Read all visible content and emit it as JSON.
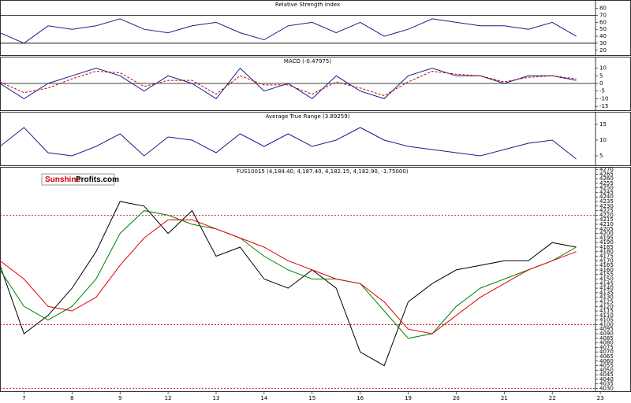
{
  "logo": {
    "part1": "Sunshine",
    "part2": "Profits.com"
  },
  "chart_data": [
    {
      "type": "line",
      "title": "Relative Strength Index",
      "x": [
        -0.5,
        0,
        0.5,
        1,
        1.5,
        2,
        2.5,
        3,
        3.5,
        4,
        4.5,
        5,
        5.5,
        6,
        6.5,
        7,
        7.5,
        8,
        8.5,
        9,
        9.5,
        10,
        10.5,
        11,
        11.5
      ],
      "xlim": [
        -0.5,
        11.9
      ],
      "ylim": [
        13,
        92
      ],
      "yticks": [
        20,
        30,
        40,
        50,
        60,
        70,
        80
      ],
      "levels": [
        70,
        30
      ],
      "level_color": "#000000",
      "series": [
        {
          "color": "#1c1c8c",
          "style": "solid",
          "values": [
            45,
            30,
            55,
            50,
            55,
            65,
            50,
            45,
            55,
            60,
            45,
            35,
            55,
            60,
            45,
            60,
            40,
            50,
            65,
            60,
            55,
            55,
            50,
            60,
            40
          ]
        }
      ]
    },
    {
      "type": "line",
      "title": "MACD (-0.47975)",
      "x": [
        -0.5,
        0,
        0.5,
        1,
        1.5,
        2,
        2.5,
        3,
        3.5,
        4,
        4.5,
        5,
        5.5,
        6,
        6.5,
        7,
        7.5,
        8,
        8.5,
        9,
        9.5,
        10,
        10.5,
        11,
        11.5
      ],
      "xlim": [
        -0.5,
        11.9
      ],
      "ylim": [
        -17.5,
        17.5
      ],
      "yticks": [
        -15,
        -10,
        -5,
        0,
        5,
        10
      ],
      "levels": [
        0
      ],
      "level_color": "#000000",
      "series": [
        {
          "color": "#1c1c8c",
          "style": "solid",
          "values": [
            0,
            -10,
            0,
            5,
            10,
            5,
            -5,
            5,
            0,
            -10,
            10,
            -5,
            0,
            -10,
            5,
            -5,
            -10,
            5,
            10,
            5,
            5,
            0,
            5,
            5,
            2
          ]
        },
        {
          "color": "#c00000",
          "style": "dashed",
          "values": [
            1,
            -6,
            -3,
            3,
            8,
            7,
            -2,
            2,
            2,
            -7,
            5,
            -1,
            -1,
            -7,
            1,
            -3,
            -8,
            1,
            8,
            6,
            5,
            1,
            4,
            5,
            3
          ]
        }
      ]
    },
    {
      "type": "line",
      "title": "Average True Range (3.89259)",
      "x": [
        -0.5,
        0,
        0.5,
        1,
        1.5,
        2,
        2.5,
        3,
        3.5,
        4,
        4.5,
        5,
        5.5,
        6,
        6.5,
        7,
        7.5,
        8,
        8.5,
        9,
        9.5,
        10,
        10.5,
        11,
        11.5
      ],
      "xlim": [
        -0.5,
        11.9
      ],
      "ylim": [
        2,
        19
      ],
      "yticks": [
        5,
        10,
        15
      ],
      "series": [
        {
          "color": "#1c1c8c",
          "style": "solid",
          "values": [
            8,
            14,
            6,
            5,
            8,
            12,
            5,
            11,
            10,
            6,
            12,
            8,
            12,
            8,
            10,
            14,
            10,
            8,
            7,
            6,
            5,
            7,
            9,
            10,
            4
          ]
        }
      ]
    },
    {
      "type": "line",
      "title": "FUS10015 (4,184.40, 4,187.40, 4,182.15, 4,182.90, -1.75000)",
      "x": [
        -0.5,
        0,
        0.5,
        1,
        1.5,
        2,
        2.5,
        3,
        3.5,
        4,
        4.5,
        5,
        5.5,
        6,
        6.5,
        7,
        7.5,
        8,
        8.5,
        9,
        9.5,
        10,
        10.5,
        11,
        11.5
      ],
      "xlim": [
        -0.5,
        11.9
      ],
      "ylim": [
        4027,
        4273
      ],
      "yticks": [
        4030,
        4035,
        4040,
        4045,
        4050,
        4055,
        4060,
        4065,
        4070,
        4075,
        4080,
        4085,
        4090,
        4095,
        4100,
        4105,
        4110,
        4115,
        4120,
        4125,
        4130,
        4135,
        4140,
        4145,
        4150,
        4155,
        4160,
        4165,
        4170,
        4175,
        4180,
        4185,
        4190,
        4195,
        4200,
        4205,
        4210,
        4215,
        4220,
        4225,
        4230,
        4235,
        4240,
        4245,
        4250,
        4255,
        4260,
        4265,
        4270
      ],
      "xticks": [
        {
          "value": 0,
          "label": "7"
        },
        {
          "value": 1,
          "label": "8"
        },
        {
          "value": 2,
          "label": "9"
        },
        {
          "value": 3,
          "label": "12"
        },
        {
          "value": 4,
          "label": "13"
        },
        {
          "value": 5,
          "label": "14"
        },
        {
          "value": 6,
          "label": "15"
        },
        {
          "value": 7,
          "label": "16"
        },
        {
          "value": 8,
          "label": "19"
        },
        {
          "value": 9,
          "label": "20"
        },
        {
          "value": 10,
          "label": "21"
        },
        {
          "value": 11,
          "label": "22"
        },
        {
          "value": 12,
          "label": "23"
        }
      ],
      "levels": [
        4220,
        4100,
        4030
      ],
      "level_color": "#c00000",
      "series": [
        {
          "color": "#000000",
          "style": "solid",
          "values": [
            4165,
            4090,
            4110,
            4140,
            4180,
            4235,
            4230,
            4200,
            4225,
            4175,
            4185,
            4150,
            4140,
            4160,
            4140,
            4070,
            4055,
            4125,
            4145,
            4160,
            4165,
            4170,
            4170,
            4190,
            4185
          ]
        },
        {
          "color": "#008000",
          "style": "solid",
          "values": [
            4160,
            4120,
            4105,
            4120,
            4150,
            4200,
            4225,
            4220,
            4210,
            4205,
            4195,
            4175,
            4160,
            4150,
            4150,
            4145,
            4115,
            4085,
            4090,
            4120,
            4140,
            4150,
            4160,
            4170,
            4185
          ]
        },
        {
          "color": "#e00000",
          "style": "solid",
          "values": [
            4170,
            4150,
            4120,
            4115,
            4130,
            4165,
            4195,
            4215,
            4215,
            4205,
            4195,
            4185,
            4170,
            4160,
            4150,
            4145,
            4125,
            4095,
            4090,
            4110,
            4130,
            4145,
            4160,
            4170,
            4180
          ]
        }
      ]
    }
  ]
}
